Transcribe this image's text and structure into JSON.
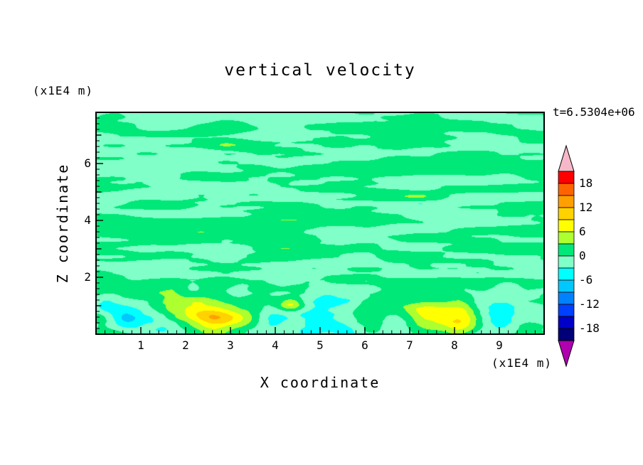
{
  "chart_data": {
    "type": "contour",
    "title": "vertical velocity",
    "timestamp": "t=6.5304e+06",
    "xlabel": "X coordinate",
    "ylabel": "Z coordinate",
    "x_units_label": "(x1E4 m)",
    "y_units_label": "(x1E4 m)",
    "xlim": [
      0,
      10
    ],
    "zlim": [
      0,
      7.8
    ],
    "x_ticks": [
      1,
      2,
      3,
      4,
      5,
      6,
      7,
      8,
      9
    ],
    "y_ticks": [
      2,
      4,
      6
    ],
    "minor_tick_step": 0.2,
    "contour_interval": 3,
    "colorbar": {
      "tick_labels": [
        18,
        12,
        6,
        0,
        -6,
        -12,
        -18
      ],
      "vmax": 21,
      "vmin": -21,
      "over_color": "#f6b8c8",
      "under_color": "#b000b0",
      "band_colors_high_to_low": [
        "#ff0000",
        "#ff6400",
        "#ffa000",
        "#ffd200",
        "#ffff00",
        "#adff2f",
        "#00e878",
        "#80ffc8",
        "#00ffff",
        "#00c8ff",
        "#0082ff",
        "#0040ff",
        "#0000c8",
        "#000078"
      ]
    },
    "field": {
      "description": "mostly near-zero vertical velocity with elongated horizontal streaks of weakly positive and negative values; convective cells with strong updrafts (yellow cores) and downdrafts (cyan) confined below z~2",
      "seed": 20110,
      "streak_texture": {
        "amplitude": 2.2,
        "fx": 0.7,
        "fz": 3.3
      },
      "bottom_mottle": {
        "amplitude": 2.3,
        "fx": 2.0,
        "fz": 1.6,
        "z_fade_start": 1.4,
        "z_fade_end": 2.2
      },
      "updrafts": [
        {
          "x": 2.45,
          "z": 0.75,
          "amp": 8.2,
          "sx": 0.55,
          "sz": 0.42
        },
        {
          "x": 3.0,
          "z": 0.5,
          "amp": 4.0,
          "sx": 0.5,
          "sz": 0.3
        },
        {
          "x": 4.35,
          "z": 1.05,
          "amp": 6.8,
          "sx": 0.19,
          "sz": 0.15
        },
        {
          "x": 7.55,
          "z": 0.68,
          "amp": 8.2,
          "sx": 0.62,
          "sz": 0.4
        },
        {
          "x": 8.2,
          "z": 0.5,
          "amp": 3.5,
          "sx": 0.4,
          "sz": 0.3
        }
      ],
      "downdrafts": [
        {
          "x": 1.05,
          "z": 0.6,
          "amp": -5.5,
          "sx": 0.34,
          "sz": 0.4
        },
        {
          "x": 0.45,
          "z": 0.95,
          "amp": -4.0,
          "sx": 0.3,
          "sz": 0.4
        },
        {
          "x": 1.62,
          "z": 0.3,
          "amp": -4.0,
          "sx": 0.28,
          "sz": 0.25
        },
        {
          "x": 3.85,
          "z": 0.5,
          "amp": -5.0,
          "sx": 0.3,
          "sz": 0.38
        },
        {
          "x": 4.95,
          "z": 0.55,
          "amp": -5.5,
          "sx": 0.36,
          "sz": 0.45
        },
        {
          "x": 5.55,
          "z": 0.3,
          "amp": -3.6,
          "sx": 0.3,
          "sz": 0.25
        },
        {
          "x": 6.75,
          "z": 0.45,
          "amp": -4.5,
          "sx": 0.3,
          "sz": 0.32
        },
        {
          "x": 8.85,
          "z": 0.5,
          "amp": -4.6,
          "sx": 0.32,
          "sz": 0.36
        }
      ]
    }
  }
}
